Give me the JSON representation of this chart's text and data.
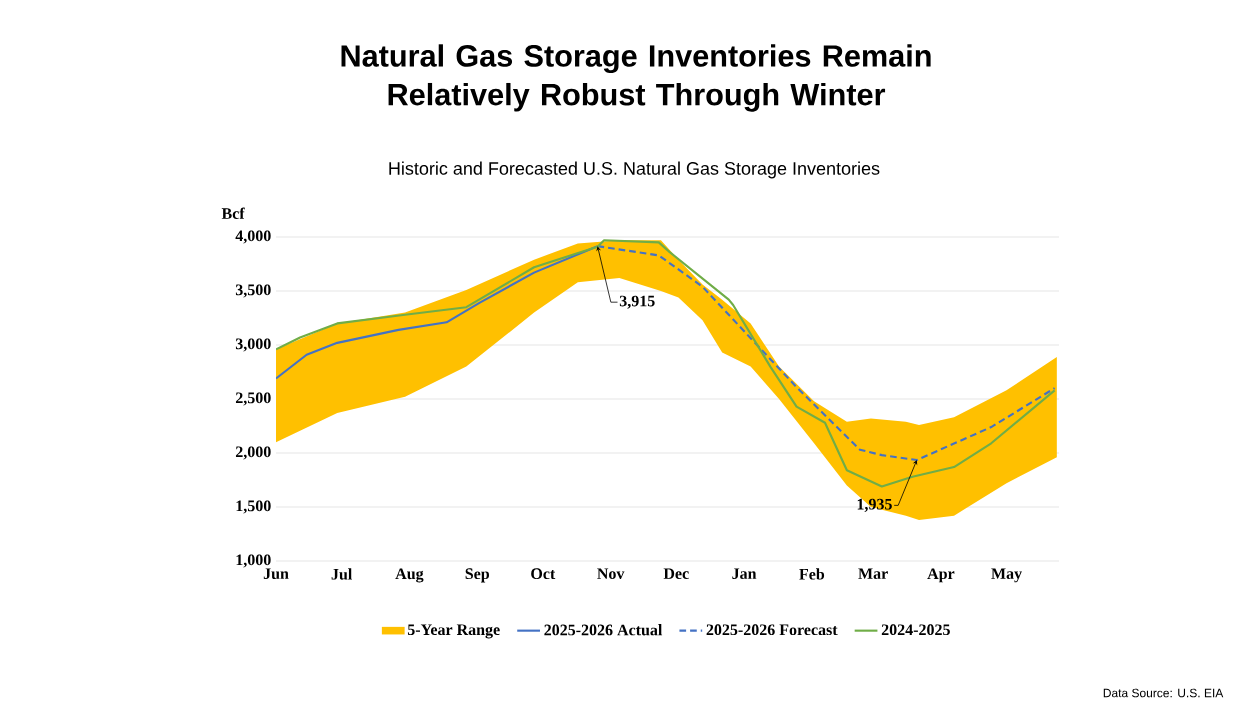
{
  "chart_data": {
    "type": "line",
    "title": "Natural Gas Storage Inventories Remain Relatively Robust Through Winter",
    "subtitle": "Historic and Forecasted U.S. Natural Gas Storage Inventories",
    "ylabel": "Bcf",
    "xlim": [
      "2025-06-01",
      "2026-05-25"
    ],
    "ylim": [
      1000,
      4000
    ],
    "xticks": [
      {
        "value": "2025-06-01",
        "label": "Jun"
      },
      {
        "value": "2025-07-01",
        "label": "Jul"
      },
      {
        "value": "2025-08-01",
        "label": "Aug"
      },
      {
        "value": "2025-09-01",
        "label": "Sep"
      },
      {
        "value": "2025-10-01",
        "label": "Oct"
      },
      {
        "value": "2025-11-01",
        "label": "Nov"
      },
      {
        "value": "2025-12-01",
        "label": "Dec"
      },
      {
        "value": "2026-01-01",
        "label": "Jan"
      },
      {
        "value": "2026-02-01",
        "label": "Feb"
      },
      {
        "value": "2026-03-01",
        "label": "Mar"
      },
      {
        "value": "2026-04-01",
        "label": "Apr"
      },
      {
        "value": "2026-05-01",
        "label": "May"
      }
    ],
    "yticks": [
      {
        "value": 1000,
        "label": "1,000"
      },
      {
        "value": 1500,
        "label": "1,500"
      },
      {
        "value": 2000,
        "label": "2,000"
      },
      {
        "value": 2500,
        "label": "2,500"
      },
      {
        "value": 3000,
        "label": "3,000"
      },
      {
        "value": 3500,
        "label": "3,500"
      },
      {
        "value": 4000,
        "label": "4,000"
      }
    ],
    "grid": "y",
    "legend": "bottom",
    "series": [
      {
        "name": "5-Year Range",
        "type": "area",
        "color": "#ffc000",
        "x": [
          "2025-06-01",
          "2025-06-29",
          "2025-07-30",
          "2025-08-27",
          "2025-09-27",
          "2025-10-17",
          "2025-11-05",
          "2025-11-24",
          "2025-12-02",
          "2025-12-13",
          "2025-12-22",
          "2026-01-04",
          "2026-01-17",
          "2026-02-02",
          "2026-02-17",
          "2026-02-28",
          "2026-03-16",
          "2026-03-22",
          "2026-04-07",
          "2026-05-01",
          "2026-05-24"
        ],
        "values": [
          null,
          null,
          null,
          null,
          null,
          null,
          null,
          null,
          null,
          null,
          null,
          null,
          null,
          null,
          null,
          null,
          null,
          null,
          null,
          null,
          null
        ],
        "upper": [
          2960,
          3200,
          3300,
          3510,
          3790,
          3940,
          3970,
          3970,
          3790,
          3560,
          3420,
          3200,
          2800,
          2480,
          2290,
          2320,
          2290,
          2260,
          2330,
          2580,
          2890
        ],
        "lower": [
          2100,
          2370,
          2520,
          2800,
          3300,
          3580,
          3620,
          3500,
          3440,
          3230,
          2930,
          2800,
          2500,
          2090,
          1700,
          1500,
          1420,
          1380,
          1420,
          1720,
          1960
        ]
      },
      {
        "name": "2025-2026 Actual",
        "color": "#4472c4",
        "line_style": "solid",
        "x": [
          "2025-06-01",
          "2025-06-15",
          "2025-06-29",
          "2025-07-27",
          "2025-08-18",
          "2025-09-02",
          "2025-09-27",
          "2025-10-26"
        ],
        "values": [
          2690,
          2910,
          3020,
          3140,
          3210,
          3390,
          3670,
          3915
        ]
      },
      {
        "name": "2025-2026 Forecast",
        "color": "#4472c4",
        "line_style": "dashed",
        "x": [
          "2025-10-26",
          "2025-11-23",
          "2025-12-13",
          "2026-01-06",
          "2026-01-25",
          "2026-02-20",
          "2026-02-23",
          "2026-03-05",
          "2026-03-21",
          "2026-04-24",
          "2026-05-23"
        ],
        "values": [
          3915,
          3830,
          3540,
          3020,
          2610,
          2090,
          2030,
          1980,
          1935,
          2240,
          2600
        ]
      },
      {
        "name": "2024-2025",
        "color": "#70ad47",
        "line_style": "solid",
        "x": [
          "2025-06-01",
          "2025-06-12",
          "2025-06-29",
          "2025-07-30",
          "2025-08-27",
          "2025-09-27",
          "2025-10-26",
          "2025-10-29",
          "2025-11-23",
          "2025-11-28",
          "2025-12-25",
          "2025-12-27",
          "2026-01-13",
          "2026-01-25",
          "2026-02-07",
          "2026-02-17",
          "2026-03-05",
          "2026-03-19",
          "2026-04-07",
          "2026-04-24",
          "2026-05-23"
        ],
        "values": [
          2960,
          3070,
          3200,
          3280,
          3350,
          3720,
          3910,
          3970,
          3950,
          3860,
          3420,
          3370,
          2800,
          2430,
          2280,
          1840,
          1690,
          1780,
          1870,
          2090,
          2580
        ]
      }
    ],
    "annotations": [
      {
        "text": "3,915",
        "x": "2025-10-26",
        "y": 3915
      },
      {
        "text": "1,935",
        "x": "2026-03-21",
        "y": 1935
      },
      "Data Source: U.S. EIA"
    ]
  }
}
